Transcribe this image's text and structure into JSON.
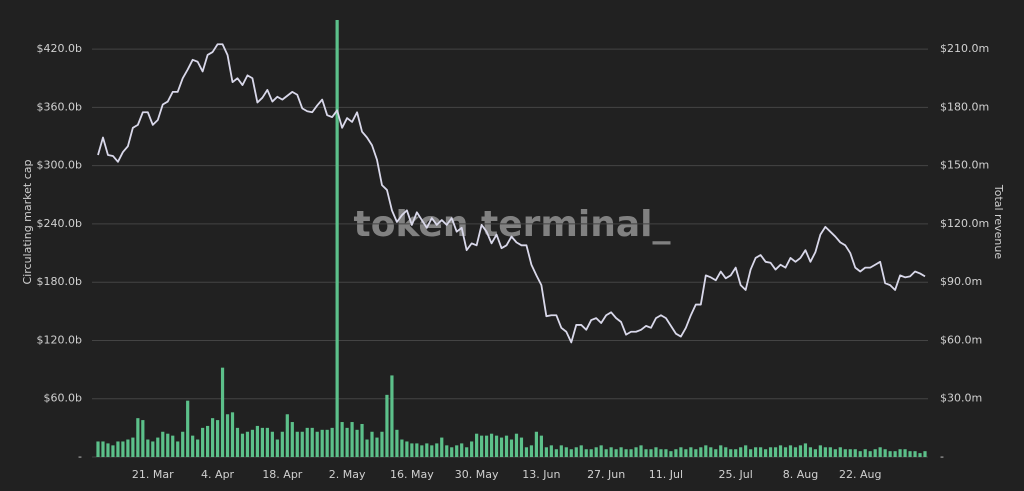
{
  "chart_data": {
    "type": "bar-line",
    "watermark": "token terminal_",
    "ylabel": "Circulating market cap",
    "y2label": "Total revenue",
    "categories": [
      null,
      null,
      null,
      null,
      null,
      null,
      null,
      null,
      null,
      null,
      null,
      "21. Mar",
      null,
      null,
      null,
      null,
      null,
      null,
      null,
      null,
      null,
      null,
      null,
      null,
      "4. Apr",
      null,
      null,
      null,
      null,
      null,
      null,
      null,
      null,
      null,
      null,
      null,
      null,
      "18. Apr",
      null,
      null,
      null,
      null,
      null,
      null,
      null,
      null,
      null,
      null,
      null,
      null,
      "2. May",
      null,
      null,
      null,
      null,
      null,
      null,
      null,
      null,
      null,
      null,
      null,
      null,
      "16. May",
      null,
      null,
      null,
      null,
      null,
      null,
      null,
      null,
      null,
      null,
      null,
      null,
      "30. May",
      null,
      null,
      null,
      null,
      null,
      null,
      null,
      null,
      null,
      null,
      null,
      null,
      "13. Jun",
      null,
      null,
      null,
      null,
      null,
      null,
      null,
      null,
      null,
      null,
      null,
      null,
      "27. Jun",
      null,
      null,
      null,
      null,
      null,
      null,
      null,
      null,
      null,
      null,
      null,
      "11. Jul",
      null,
      null,
      null,
      null,
      null,
      null,
      null,
      null,
      null,
      null,
      null,
      null,
      null,
      "25. Jul",
      null,
      null,
      null,
      null,
      null,
      null,
      null,
      null,
      null,
      null,
      null,
      null,
      "8. Aug",
      null,
      null,
      null,
      null,
      null,
      null,
      null,
      null,
      null,
      null,
      null,
      "22. Aug",
      null,
      null,
      null,
      null,
      null,
      null,
      null,
      null,
      null,
      null,
      null,
      null,
      null
    ],
    "series": [
      {
        "kind": "line",
        "color": "#d9d8ea",
        "values": [
          311,
          329,
          311,
          310,
          304,
          314,
          320,
          339,
          342,
          355,
          355,
          342,
          347,
          363,
          366,
          376,
          376,
          390,
          399,
          409,
          407,
          397,
          414,
          417,
          425,
          425,
          414,
          386,
          390,
          383,
          393,
          390,
          365,
          370,
          378,
          366,
          371,
          368,
          372,
          376,
          373,
          359,
          356,
          355,
          362,
          368,
          352,
          350,
          357,
          339,
          349,
          345,
          355,
          335,
          329,
          321,
          306,
          280,
          275,
          254,
          242,
          249,
          254,
          239,
          252,
          244,
          236,
          246,
          239,
          244,
          239,
          246,
          232,
          236,
          213,
          220,
          218,
          239,
          232,
          220,
          229,
          215,
          218,
          227,
          221,
          218,
          218,
          198,
          187,
          177,
          145,
          146,
          146,
          133,
          129,
          118,
          136,
          136,
          131,
          141,
          143,
          138,
          146,
          149,
          143,
          139,
          126,
          129,
          129,
          131,
          135,
          133,
          143,
          146,
          143,
          135,
          127,
          124,
          133,
          146,
          157,
          157,
          187,
          185,
          182,
          191,
          184,
          187,
          195,
          177,
          172,
          193,
          205,
          208,
          201,
          200,
          193,
          198,
          195,
          205,
          201,
          205,
          213,
          201,
          211,
          229,
          237,
          232,
          227,
          221,
          218,
          210,
          195,
          191,
          195,
          195,
          198,
          201,
          179,
          177,
          172,
          187,
          185,
          186,
          191,
          189,
          186
        ]
      },
      {
        "kind": "bar",
        "axis": "y2",
        "color": "#5cc08a",
        "values": [
          8,
          8,
          7,
          6,
          8,
          8,
          9,
          10,
          20,
          19,
          9,
          8,
          10,
          13,
          12,
          11,
          8,
          13,
          29,
          11,
          9,
          15,
          16,
          20,
          19,
          46,
          22,
          23,
          15,
          12,
          13,
          14,
          16,
          15,
          15,
          13,
          9,
          13,
          22,
          18,
          13,
          13,
          15,
          15,
          13,
          14,
          14,
          15,
          225,
          18,
          15,
          18,
          14,
          17,
          9,
          13,
          10,
          13,
          32,
          42,
          14,
          9,
          8,
          7,
          7,
          6,
          7,
          6,
          7,
          10,
          6,
          5,
          6,
          7,
          5,
          8,
          12,
          11,
          11,
          12,
          11,
          10,
          11,
          9,
          12,
          10,
          5,
          6,
          13,
          11,
          5,
          6,
          4,
          6,
          5,
          4,
          5,
          6,
          4,
          4,
          5,
          6,
          4,
          5,
          4,
          5,
          4,
          4,
          5,
          6,
          4,
          4,
          5,
          4,
          4,
          3,
          4,
          5,
          4,
          5,
          4,
          5,
          6,
          5,
          4,
          6,
          5,
          4,
          4,
          5,
          6,
          4,
          5,
          5,
          4,
          5,
          5,
          6,
          5,
          6,
          5,
          6,
          7,
          5,
          4,
          6,
          5,
          5,
          4,
          5,
          4,
          4,
          4,
          3,
          4,
          3,
          4,
          5,
          4,
          3,
          3,
          4,
          4,
          3,
          3,
          2,
          3
        ]
      }
    ],
    "ylim": [
      0,
      450
    ],
    "yticks": [
      {
        "value": 0,
        "label": "-"
      },
      {
        "value": 60,
        "label": "$60.0b"
      },
      {
        "value": 120,
        "label": "$120.0b"
      },
      {
        "value": 180,
        "label": "$180.0b"
      },
      {
        "value": 240,
        "label": "$240.0b"
      },
      {
        "value": 300,
        "label": "$300.0b"
      },
      {
        "value": 360,
        "label": "$360.0b"
      },
      {
        "value": 420,
        "label": "$420.0b"
      }
    ],
    "y2lim": [
      0,
      225
    ],
    "y2ticks": [
      {
        "value": 0,
        "label": "-"
      },
      {
        "value": 30,
        "label": "$30.0m"
      },
      {
        "value": 60,
        "label": "$60.0m"
      },
      {
        "value": 90,
        "label": "$90.0m"
      },
      {
        "value": 120,
        "label": "$120.0m"
      },
      {
        "value": 150,
        "label": "$150.0m"
      },
      {
        "value": 180,
        "label": "$180.0m"
      },
      {
        "value": 210,
        "label": "$210.0m"
      }
    ],
    "grid": true
  }
}
